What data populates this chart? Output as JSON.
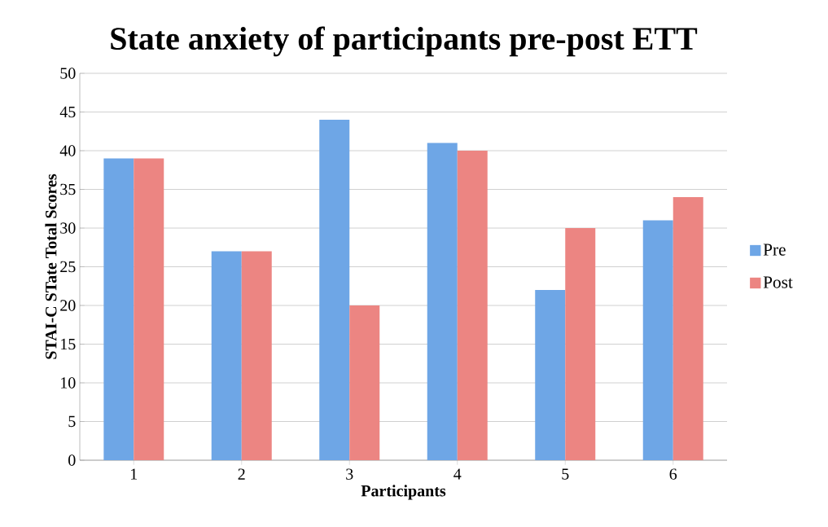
{
  "chart_data": {
    "type": "bar",
    "title": "State anxiety of participants pre-post ETT",
    "xlabel": "Participants",
    "ylabel": "STAI-C STate Total  Scores",
    "categories": [
      "1",
      "2",
      "3",
      "4",
      "5",
      "6"
    ],
    "series": [
      {
        "name": "Pre",
        "color": "#6ea6e6",
        "values": [
          39,
          27,
          44,
          41,
          22,
          31
        ]
      },
      {
        "name": "Post",
        "color": "#ec8582",
        "values": [
          39,
          27,
          20,
          40,
          30,
          34
        ]
      }
    ],
    "ylim": [
      0,
      50
    ],
    "yticks": [
      0,
      5,
      10,
      15,
      20,
      25,
      30,
      35,
      40,
      45,
      50
    ],
    "grid": "y",
    "legend": "right"
  }
}
